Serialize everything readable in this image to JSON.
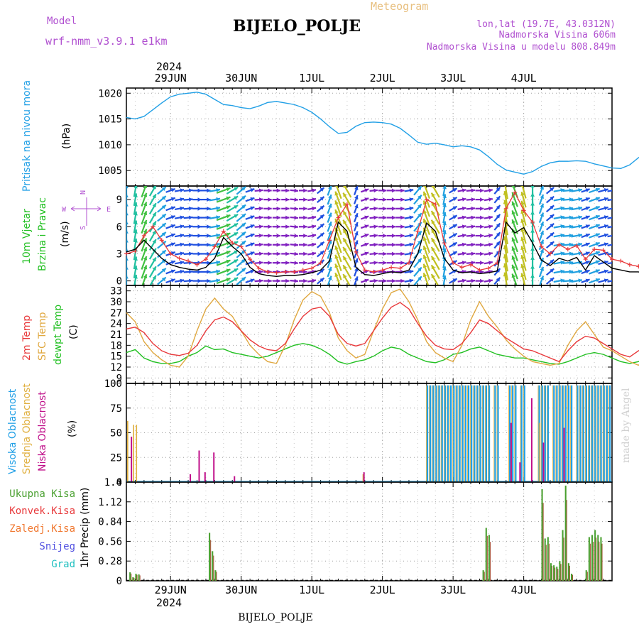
{
  "header": {
    "model_label": "Model",
    "model_name": "wrf-nmm_v3.9.1 e1km",
    "title": "BIJELO_POLJE",
    "subtitle": "Meteogram",
    "lonlat": "lon,lat (19.7E, 43.0312N)",
    "altitude": "Nadmorska Visina 606m",
    "model_altitude": "Nadmorska Visina u modelu 808.849m",
    "year": "2024",
    "footer": "BIJELO_POLJE",
    "credit": "made by Angel"
  },
  "colors": {
    "pressure": "#22a0e6",
    "wind_speed": "#000000",
    "wind_gust": "#e8383a",
    "temp_2m": "#e8383a",
    "temp_sfc": "#e0a840",
    "dewpoint": "#22c022",
    "cloud_high": "#22a0e6",
    "cloud_mid": "#e0b040",
    "cloud_low": "#c0108a",
    "precip_total": "#4aa030",
    "precip_conv": "#e8383a",
    "precip_ice": "#f07830",
    "snow": "#5050e0",
    "hail": "#20c0c0"
  },
  "chart_data": [
    {
      "type": "line",
      "name": "pressure",
      "ylabel": [
        "Pritisak na nivou mora",
        "(hPa)"
      ],
      "x_start_hour": 0,
      "x_step_hours": 3,
      "ylim": [
        1002,
        1021
      ],
      "yticks": [
        1005,
        1010,
        1015,
        1020
      ],
      "grid": true,
      "values": [
        1015.3,
        1015.0,
        1015.5,
        1016.8,
        1018.1,
        1019.3,
        1019.8,
        1020.0,
        1020.2,
        1019.8,
        1018.8,
        1017.8,
        1017.6,
        1017.2,
        1017.0,
        1017.5,
        1018.2,
        1018.4,
        1018.1,
        1017.8,
        1017.2,
        1016.3,
        1015.0,
        1013.5,
        1012.2,
        1012.4,
        1013.6,
        1014.3,
        1014.4,
        1014.3,
        1014.0,
        1013.2,
        1011.9,
        1010.5,
        1010.1,
        1010.3,
        1010.0,
        1009.6,
        1009.8,
        1009.6,
        1009.0,
        1007.7,
        1006.2,
        1005.1,
        1004.7,
        1004.3,
        1004.8,
        1005.8,
        1006.5,
        1006.8,
        1006.8,
        1006.9,
        1006.8,
        1006.3,
        1005.9,
        1005.5,
        1005.4,
        1006.1,
        1007.5,
        1008.5,
        1009.5,
        1010.1,
        1010.3,
        1010.8,
        1011.5
      ]
    },
    {
      "type": "line",
      "name": "wind",
      "ylabel": [
        "10m Vjetar",
        "Brzina i Pravac",
        "(m/s)"
      ],
      "compass": {
        "n": "N",
        "w": "W",
        "e": "E",
        "s": "S"
      },
      "x_start_hour": 0,
      "x_step_hours": 3,
      "ylim": [
        -0.5,
        10.5
      ],
      "yticks": [
        0,
        3,
        6,
        9
      ],
      "grid": true,
      "series": [
        {
          "name": "speed",
          "values": [
            3.2,
            3.5,
            4.5,
            3.5,
            2.5,
            1.8,
            1.5,
            1.3,
            1.2,
            1.5,
            2.5,
            4.8,
            3.8,
            3.0,
            1.5,
            0.8,
            0.6,
            0.5,
            0.6,
            0.6,
            0.7,
            0.9,
            1.2,
            2.2,
            6.5,
            5.5,
            1.5,
            0.7,
            0.6,
            0.8,
            1.0,
            0.9,
            1.2,
            3.0,
            6.4,
            5.5,
            2.5,
            1.2,
            0.9,
            1.0,
            0.8,
            0.9,
            1.1,
            6.5,
            5.3,
            5.9,
            4.2,
            2.3,
            1.7,
            2.5,
            2.2,
            2.6,
            1.2,
            2.8,
            2.1,
            1.4,
            1.2,
            1.0,
            1.0,
            0.5,
            0.4,
            0.6,
            1.2,
            2.2,
            3.5
          ]
        },
        {
          "name": "gust",
          "values": [
            3.0,
            3.3,
            5.0,
            6.0,
            4.5,
            3.0,
            2.5,
            2.2,
            1.8,
            2.4,
            3.8,
            5.5,
            4.2,
            3.8,
            2.4,
            1.4,
            1.0,
            0.9,
            1.0,
            1.0,
            1.2,
            1.4,
            2.0,
            4.5,
            7.0,
            8.5,
            3.2,
            1.2,
            1.0,
            1.2,
            1.5,
            1.4,
            2.0,
            5.5,
            9.0,
            8.5,
            4.2,
            2.0,
            1.5,
            1.8,
            1.2,
            1.4,
            2.0,
            8.0,
            9.8,
            7.8,
            6.5,
            3.8,
            3.0,
            4.0,
            3.5,
            3.9,
            2.4,
            3.5,
            3.4,
            2.4,
            2.2,
            1.8,
            1.6,
            1.0,
            0.8,
            1.0,
            2.0,
            3.5,
            4.0
          ]
        }
      ],
      "direction_deg": [
        180,
        190,
        200,
        210,
        230,
        250,
        260,
        265,
        270,
        270,
        260,
        250,
        240,
        230,
        250,
        265,
        270,
        270,
        270,
        275,
        270,
        260,
        230,
        200,
        160,
        150,
        200,
        250,
        265,
        270,
        270,
        270,
        260,
        220,
        160,
        150,
        190,
        240,
        260,
        265,
        270,
        260,
        220,
        170,
        160,
        165,
        180,
        200,
        230,
        260,
        265,
        260,
        250,
        250,
        255,
        260,
        265,
        270,
        270,
        270,
        265,
        255,
        240,
        210,
        190
      ]
    },
    {
      "type": "line",
      "name": "temperature",
      "ylabel": [
        "2m Temp",
        "SFC Temp",
        "dewpt Temp",
        "(C)"
      ],
      "x_start_hour": 0,
      "x_step_hours": 3,
      "ylim": [
        7.5,
        34.5
      ],
      "yticks": [
        9,
        12,
        15,
        18,
        21,
        24,
        27,
        30,
        33
      ],
      "grid": true,
      "series": [
        {
          "name": "2m",
          "values": [
            22.5,
            23.0,
            21.5,
            18.5,
            16.5,
            15.5,
            15.2,
            15.8,
            18.0,
            22.0,
            25.0,
            25.8,
            24.5,
            22.0,
            19.5,
            17.8,
            16.8,
            16.5,
            18.5,
            22.5,
            26.0,
            28.0,
            28.5,
            26.0,
            21.0,
            18.5,
            17.8,
            18.5,
            22.0,
            25.5,
            28.5,
            29.8,
            28.0,
            24.0,
            20.5,
            18.0,
            17.0,
            16.8,
            18.5,
            21.5,
            25.0,
            24.0,
            22.0,
            20.0,
            18.5,
            17.0,
            16.5,
            15.5,
            14.5,
            13.5,
            16.5,
            19.0,
            20.5,
            20.0,
            18.5,
            17.0,
            15.5,
            14.8,
            16.5,
            17.5,
            16.5,
            15.0,
            14.5,
            17.5,
            18.5
          ]
        },
        {
          "name": "sfc",
          "values": [
            27.0,
            24.5,
            19.0,
            16.0,
            14.0,
            12.5,
            12.0,
            15.0,
            22.0,
            28.0,
            31.0,
            28.0,
            26.0,
            22.0,
            18.0,
            15.5,
            13.5,
            13.0,
            18.0,
            25.0,
            30.5,
            32.8,
            31.5,
            27.0,
            20.0,
            16.5,
            14.5,
            15.5,
            22.0,
            28.0,
            32.5,
            33.5,
            30.0,
            25.0,
            19.0,
            16.0,
            14.5,
            13.5,
            18.0,
            25.0,
            30.0,
            26.0,
            23.0,
            19.5,
            17.0,
            15.0,
            13.5,
            13.0,
            12.5,
            13.0,
            18.0,
            22.0,
            24.5,
            21.0,
            17.5,
            16.5,
            15.0,
            13.5,
            12.5,
            15.0,
            13.0,
            11.0,
            9.5,
            20.0,
            21.0
          ]
        },
        {
          "name": "dewpt",
          "values": [
            16.0,
            16.8,
            14.5,
            13.5,
            13.0,
            13.0,
            13.5,
            15.0,
            16.0,
            17.8,
            16.8,
            17.0,
            16.0,
            15.5,
            15.0,
            14.5,
            15.0,
            16.0,
            17.0,
            18.0,
            18.5,
            18.0,
            17.0,
            15.5,
            13.5,
            12.8,
            13.5,
            14.0,
            15.0,
            16.5,
            17.5,
            17.0,
            15.5,
            14.5,
            13.5,
            13.2,
            14.0,
            15.5,
            16.0,
            17.0,
            17.5,
            16.5,
            15.5,
            15.0,
            14.5,
            14.5,
            14.0,
            13.5,
            13.0,
            12.8,
            13.5,
            14.5,
            15.5,
            16.0,
            15.5,
            14.5,
            13.5,
            13.0,
            13.5,
            14.5,
            14.5,
            14.0,
            13.5,
            15.5,
            15.2
          ]
        }
      ]
    },
    {
      "type": "bar",
      "name": "clouds",
      "ylabel": [
        "Visoka Oblacnost",
        "Srednja Oblacnost",
        "Niska Oblacnost",
        "(%)"
      ],
      "x_start_hour": 0,
      "x_step_hours": 1,
      "ylim": [
        0,
        100
      ],
      "yticks": [
        0,
        25,
        50,
        75,
        100
      ],
      "grid": true,
      "series": [
        {
          "name": "high",
          "runs": [
            [
              116,
              165,
              98
            ],
            [
              0,
              6,
              0
            ]
          ]
        },
        {
          "name": "mid",
          "segments": [
            [
              0,
              62
            ],
            [
              1,
              0
            ],
            [
              2,
              55
            ],
            [
              3,
              58
            ],
            [
              4,
              60
            ],
            [
              42,
              0
            ],
            [
              100,
              8
            ],
            [
              115,
              98
            ],
            [
              140,
              60
            ],
            [
              160,
              98
            ]
          ]
        },
        {
          "name": "low",
          "segments": [
            [
              1,
              46
            ],
            [
              22,
              8
            ],
            [
              25,
              32
            ],
            [
              27,
              10
            ],
            [
              30,
              30
            ],
            [
              37,
              6
            ],
            [
              100,
              10
            ],
            [
              140,
              60
            ],
            [
              150,
              85
            ],
            [
              155,
              40
            ]
          ]
        }
      ]
    },
    {
      "type": "bar",
      "name": "precipitation",
      "ylabel": [
        "1hr Precip (mm)"
      ],
      "legend": [
        "Ukupna Kisa",
        "Konvek.Kisa",
        "Zaledj.Kisa",
        "Snijeg",
        "Grad"
      ],
      "x_start_hour": 0,
      "x_step_hours": 1,
      "ylim": [
        0,
        1.4
      ],
      "yticks": [
        0,
        0.28,
        0.56,
        0.84,
        1.12,
        1.4
      ],
      "grid": true,
      "x_tick_labels": [
        "29JUN",
        "30JUN",
        "1JUL",
        "2JUL",
        "3JUL",
        "4JUL"
      ],
      "x_ticks_hours": [
        15,
        39,
        63,
        87,
        111,
        135
      ],
      "bars": [
        [
          1,
          0.12
        ],
        [
          2,
          0.05
        ],
        [
          3,
          0.1
        ],
        [
          4,
          0.09
        ],
        [
          28,
          0.68
        ],
        [
          29,
          0.42
        ],
        [
          30,
          0.15
        ],
        [
          121,
          0.15
        ],
        [
          122,
          0.75
        ],
        [
          123,
          0.65
        ],
        [
          141,
          1.3
        ],
        [
          142,
          0.6
        ],
        [
          143,
          0.62
        ],
        [
          144,
          0.25
        ],
        [
          145,
          0.22
        ],
        [
          146,
          0.2
        ],
        [
          147,
          0.28
        ],
        [
          148,
          0.72
        ],
        [
          149,
          1.35
        ],
        [
          150,
          0.25
        ],
        [
          151,
          0.1
        ],
        [
          156,
          0.15
        ],
        [
          157,
          0.62
        ],
        [
          158,
          0.65
        ],
        [
          159,
          0.72
        ],
        [
          160,
          0.65
        ],
        [
          161,
          0.62
        ]
      ]
    }
  ]
}
